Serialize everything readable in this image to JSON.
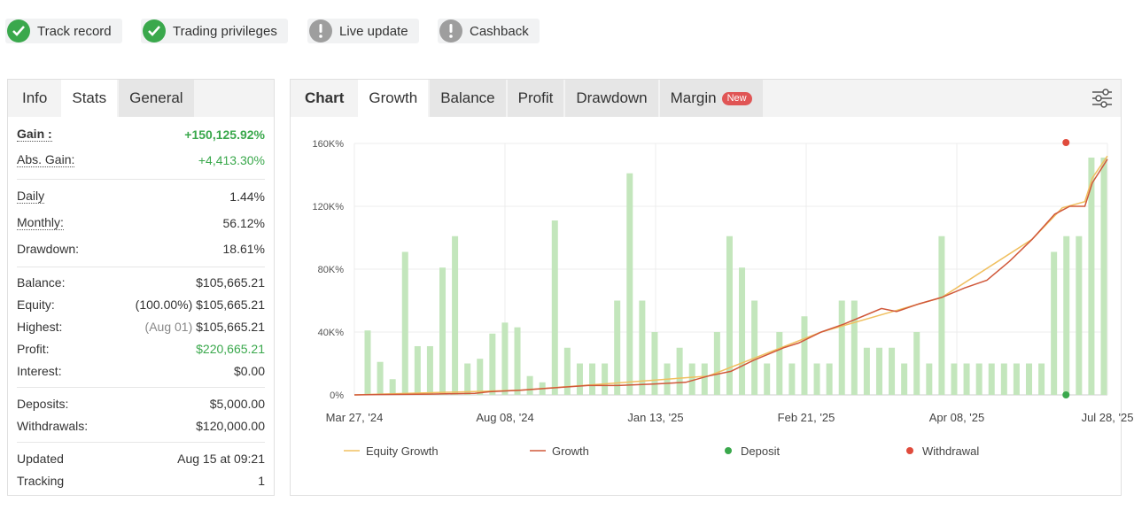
{
  "badges": [
    {
      "label": "Track record",
      "status": "verified"
    },
    {
      "label": "Trading privileges",
      "status": "verified"
    },
    {
      "label": "Live update",
      "status": "warning"
    },
    {
      "label": "Cashback",
      "status": "warning"
    }
  ],
  "left_tabs": [
    "Info",
    "Stats",
    "General"
  ],
  "stats": {
    "gain_label": "Gain :",
    "gain_value": "+150,125.92%",
    "abs_gain_label": "Abs. Gain:",
    "abs_gain_value": "+4,413.30%",
    "daily_label": "Daily",
    "daily_value": "1.44%",
    "monthly_label": "Monthly:",
    "monthly_value": "56.12%",
    "drawdown_label": "Drawdown:",
    "drawdown_value": "18.61%",
    "balance_label": "Balance:",
    "balance_value": "$105,665.21",
    "equity_label": "Equity:",
    "equity_pct": "(100.00%)",
    "equity_value": "$105,665.21",
    "highest_label": "Highest:",
    "highest_date": "(Aug 01)",
    "highest_value": "$105,665.21",
    "profit_label": "Profit:",
    "profit_value": "$220,665.21",
    "interest_label": "Interest:",
    "interest_value": "$0.00",
    "deposits_label": "Deposits:",
    "deposits_value": "$5,000.00",
    "withdrawals_label": "Withdrawals:",
    "withdrawals_value": "$120,000.00",
    "updated_label": "Updated",
    "updated_value": "Aug 15 at 09:21",
    "tracking_label": "Tracking",
    "tracking_value": "1"
  },
  "chart_tabs": {
    "chart": "Chart",
    "growth": "Growth",
    "balance": "Balance",
    "profit": "Profit",
    "drawdown": "Drawdown",
    "margin": "Margin",
    "new_badge": "New"
  },
  "colors": {
    "bars": "#c3e6bc",
    "growth": "#d0583a",
    "equity": "#f0c060",
    "deposit": "#3aa84c",
    "withdrawal": "#e04b3c"
  },
  "chart_data": {
    "type": "bar",
    "y_tick_labels": [
      "0%",
      "40K%",
      "80K%",
      "120K%",
      "160K%"
    ],
    "ylim": [
      0,
      160000
    ],
    "x_tick_labels": [
      "Mar 27, '24",
      "Aug 08, '24",
      "Jan 13, '25",
      "Feb 21, '25",
      "Apr 08, '25",
      "Jul 28, '25"
    ],
    "bar_values": [
      41000,
      21000,
      10000,
      91000,
      31000,
      31000,
      81000,
      101000,
      20000,
      23000,
      39000,
      46000,
      43000,
      12000,
      8000,
      111000,
      30000,
      20000,
      20000,
      20000,
      60000,
      141000,
      60000,
      40000,
      20000,
      30000,
      20000,
      20000,
      40000,
      101000,
      81000,
      60000,
      20000,
      40000,
      20000,
      50000,
      20000,
      20000,
      60000,
      60000,
      30000,
      30000,
      30000,
      20000,
      40000,
      20000,
      101000,
      20000,
      20000,
      20000,
      20000,
      20000,
      20000,
      20000,
      20000,
      91000,
      101000,
      101000,
      151000,
      151000
    ],
    "growth_points": [
      [
        0,
        0
      ],
      [
        3,
        200
      ],
      [
        10,
        500
      ],
      [
        16,
        1000
      ],
      [
        18,
        2000
      ],
      [
        22,
        3000
      ],
      [
        28,
        5000
      ],
      [
        31,
        6000
      ],
      [
        35,
        6000
      ],
      [
        40,
        7000
      ],
      [
        44,
        8000
      ],
      [
        47,
        12000
      ],
      [
        50,
        15000
      ],
      [
        53,
        22000
      ],
      [
        55,
        26000
      ],
      [
        57,
        30000
      ],
      [
        59,
        33000
      ],
      [
        62,
        40000
      ],
      [
        65,
        45000
      ],
      [
        68,
        51000
      ],
      [
        70,
        55000
      ],
      [
        72,
        53000
      ],
      [
        75,
        58000
      ],
      [
        78,
        62000
      ],
      [
        81,
        68000
      ],
      [
        84,
        73000
      ],
      [
        87,
        85000
      ],
      [
        90,
        99000
      ],
      [
        93,
        115000
      ],
      [
        95,
        120000
      ],
      [
        97,
        120000
      ],
      [
        98,
        135000
      ],
      [
        100,
        150000
      ]
    ],
    "equity_points": [
      [
        0,
        0
      ],
      [
        22,
        3000
      ],
      [
        47,
        12000
      ],
      [
        62,
        40000
      ],
      [
        78,
        62000
      ],
      [
        90,
        99000
      ],
      [
        94,
        119000
      ],
      [
        97,
        123000
      ],
      [
        98,
        138000
      ],
      [
        100,
        152000
      ]
    ],
    "deposit_marker": {
      "x_pct": 94.5,
      "value": 0
    },
    "withdrawal_marker": {
      "x_pct": 94.5,
      "value": 160000
    },
    "legend": [
      "Equity Growth",
      "Growth",
      "Deposit",
      "Withdrawal"
    ]
  }
}
